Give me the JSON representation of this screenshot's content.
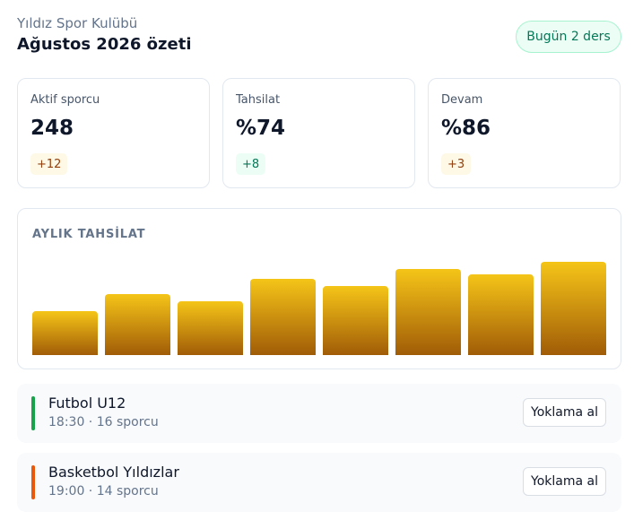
{
  "header": {
    "club": "Yıldız Spor Kulübü",
    "title": "Ağustos 2026 özeti",
    "badge": "Bugün 2 ders"
  },
  "stats": [
    {
      "label": "Aktif sporcu",
      "value": 248,
      "delta": "+12",
      "tone": "warm"
    },
    {
      "label": "Tahsilat",
      "value": "%74",
      "delta": "+8",
      "tone": "good"
    },
    {
      "label": "Devam",
      "value": "%86",
      "delta": "+3",
      "tone": "warm"
    }
  ],
  "chart_data": {
    "type": "bar",
    "title": "AYLIK TAHSİLAT",
    "values": [
      49,
      68,
      60,
      85,
      77,
      96,
      90,
      104
    ],
    "ylim": [
      0,
      110
    ]
  },
  "sessions": [
    {
      "name": "Futbol U12",
      "details": "18:30 · 16 sporcu",
      "action": "Yoklama al",
      "color": "#16a34a"
    },
    {
      "name": "Basketbol Yıldızlar",
      "details": "19:00 · 14 sporcu",
      "action": "Yoklama al",
      "color": "#ea580c"
    }
  ]
}
